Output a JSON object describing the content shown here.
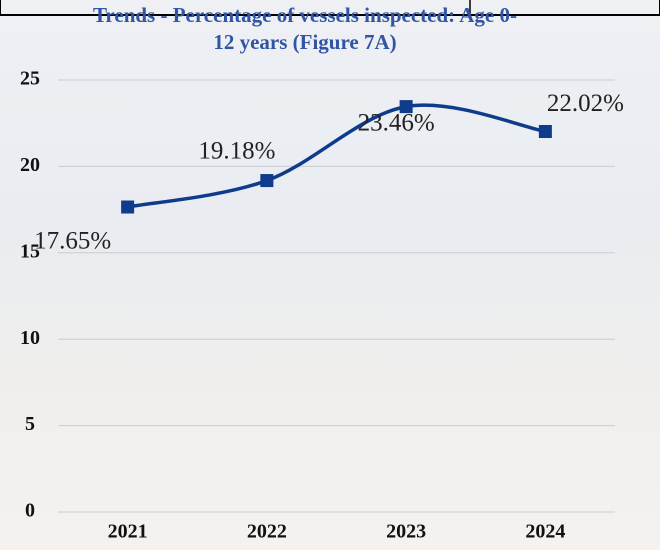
{
  "chart_data": {
    "type": "line",
    "title": "Trends - Percentage of vessels inspected: Age 0-12 years (Figure 7A)",
    "categories": [
      "2021",
      "2022",
      "2023",
      "2024"
    ],
    "values": [
      17.65,
      19.18,
      23.46,
      22.02
    ],
    "value_labels": [
      "17.65%",
      "19.18%",
      "23.46%",
      "22.02%"
    ],
    "color": "#0e3b8c",
    "ylim": [
      0,
      25
    ],
    "yticks": [
      0,
      5,
      10,
      15,
      20,
      25
    ],
    "grid": true
  }
}
